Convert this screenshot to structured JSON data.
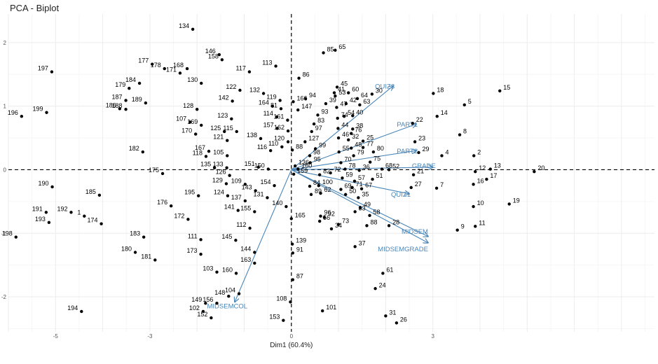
{
  "chart_data": {
    "type": "scatter",
    "subtype": "pca-biplot",
    "title": "PCA - Biplot",
    "xlabel": "Dim1 (60.4%)",
    "ylabel": "",
    "xlim": [
      -6.0,
      7.7
    ],
    "ylim": [
      -2.55,
      2.45
    ],
    "xticks": [
      -5,
      -3,
      0,
      3
    ],
    "yticks": [
      2,
      1,
      0,
      -1,
      -2
    ],
    "xtick_labels": [
      "-5",
      "-3",
      "0",
      "3"
    ],
    "ytick_labels": [
      "2",
      "1",
      "0",
      "-1",
      "-2"
    ],
    "grid": true,
    "points": [
      {
        "label": "134",
        "x": -2.09,
        "y": 2.21
      },
      {
        "label": "85",
        "x": 0.68,
        "y": 1.84
      },
      {
        "label": "65",
        "x": 0.93,
        "y": 1.88
      },
      {
        "label": "146",
        "x": -1.53,
        "y": 1.81
      },
      {
        "label": "158",
        "x": -1.47,
        "y": 1.73
      },
      {
        "label": "177",
        "x": -2.95,
        "y": 1.66
      },
      {
        "label": "178",
        "x": -2.69,
        "y": 1.59
      },
      {
        "label": "168",
        "x": -2.21,
        "y": 1.59
      },
      {
        "label": "171",
        "x": -2.36,
        "y": 1.52
      },
      {
        "label": "197",
        "x": -5.08,
        "y": 1.54
      },
      {
        "label": "113",
        "x": -0.33,
        "y": 1.63
      },
      {
        "label": "117",
        "x": -0.89,
        "y": 1.54
      },
      {
        "label": "86",
        "x": 0.16,
        "y": 1.44
      },
      {
        "label": "184",
        "x": -3.22,
        "y": 1.36
      },
      {
        "label": "179",
        "x": -3.44,
        "y": 1.28
      },
      {
        "label": "130",
        "x": -1.91,
        "y": 1.36
      },
      {
        "label": "122",
        "x": -1.09,
        "y": 1.25
      },
      {
        "label": "45",
        "x": 0.97,
        "y": 1.3
      },
      {
        "label": "41",
        "x": 0.91,
        "y": 1.21
      },
      {
        "label": "132",
        "x": -0.59,
        "y": 1.2
      },
      {
        "label": "60",
        "x": 1.21,
        "y": 1.21
      },
      {
        "label": "30",
        "x": 1.71,
        "y": 1.19
      },
      {
        "label": "53",
        "x": 0.93,
        "y": 1.16
      },
      {
        "label": "64",
        "x": 1.4,
        "y": 1.12
      },
      {
        "label": "94",
        "x": 0.3,
        "y": 1.12
      },
      {
        "label": "187",
        "x": -3.51,
        "y": 1.09
      },
      {
        "label": "39",
        "x": 0.73,
        "y": 1.04
      },
      {
        "label": "42",
        "x": 1.16,
        "y": 1.04
      },
      {
        "label": "119",
        "x": -0.24,
        "y": 1.09
      },
      {
        "label": "166",
        "x": 0.04,
        "y": 1.07
      },
      {
        "label": "63",
        "x": 1.45,
        "y": 1.02
      },
      {
        "label": "15",
        "x": 4.42,
        "y": 1.24
      },
      {
        "label": "18",
        "x": 3.01,
        "y": 1.2
      },
      {
        "label": "142",
        "x": -1.25,
        "y": 1.08
      },
      {
        "label": "47",
        "x": 0.96,
        "y": 0.98
      },
      {
        "label": "189",
        "x": -3.09,
        "y": 1.05
      },
      {
        "label": "164",
        "x": -0.4,
        "y": 1.0
      },
      {
        "label": "5",
        "x": 3.67,
        "y": 1.02
      },
      {
        "label": "186",
        "x": -3.64,
        "y": 0.96
      },
      {
        "label": "188",
        "x": -3.51,
        "y": 0.95
      },
      {
        "label": "128",
        "x": -2.0,
        "y": 0.95
      },
      {
        "label": "81",
        "x": -0.22,
        "y": 0.96
      },
      {
        "label": "147",
        "x": 0.14,
        "y": 0.94
      },
      {
        "label": "199",
        "x": -5.19,
        "y": 0.9
      },
      {
        "label": "40",
        "x": 1.3,
        "y": 0.85
      },
      {
        "label": "93",
        "x": 0.56,
        "y": 0.86
      },
      {
        "label": "74",
        "x": 0.98,
        "y": 0.81
      },
      {
        "label": "54",
        "x": 1.12,
        "y": 0.84
      },
      {
        "label": "196",
        "x": -5.72,
        "y": 0.84
      },
      {
        "label": "114",
        "x": -0.31,
        "y": 0.83
      },
      {
        "label": "161",
        "x": -0.08,
        "y": 0.78
      },
      {
        "label": "14",
        "x": 3.09,
        "y": 0.84
      },
      {
        "label": "123",
        "x": -1.27,
        "y": 0.8
      },
      {
        "label": "107",
        "x": -2.15,
        "y": 0.75
      },
      {
        "label": "169",
        "x": -1.91,
        "y": 0.7
      },
      {
        "label": "83",
        "x": 0.48,
        "y": 0.72
      },
      {
        "label": "22",
        "x": 2.57,
        "y": 0.73
      },
      {
        "label": "44",
        "x": 0.99,
        "y": 0.65
      },
      {
        "label": "38",
        "x": 1.3,
        "y": 0.64
      },
      {
        "label": "157",
        "x": -0.3,
        "y": 0.65
      },
      {
        "label": "162",
        "x": -0.07,
        "y": 0.61
      },
      {
        "label": "97",
        "x": 0.43,
        "y": 0.6
      },
      {
        "label": "76",
        "x": 1.27,
        "y": 0.57
      },
      {
        "label": "125",
        "x": -1.42,
        "y": 0.6
      },
      {
        "label": "115",
        "x": -1.16,
        "y": 0.6
      },
      {
        "label": "170",
        "x": -2.03,
        "y": 0.56
      },
      {
        "label": "46",
        "x": 1.0,
        "y": 0.5
      },
      {
        "label": "32",
        "x": 1.21,
        "y": 0.47
      },
      {
        "label": "25",
        "x": 1.52,
        "y": 0.45
      },
      {
        "label": "8",
        "x": 3.57,
        "y": 0.55
      },
      {
        "label": "138",
        "x": -0.65,
        "y": 0.49
      },
      {
        "label": "121",
        "x": -1.36,
        "y": 0.46
      },
      {
        "label": "120",
        "x": -0.07,
        "y": 0.44
      },
      {
        "label": "127",
        "x": 0.29,
        "y": 0.44
      },
      {
        "label": "23",
        "x": 2.62,
        "y": 0.44
      },
      {
        "label": "77",
        "x": 1.52,
        "y": 0.35
      },
      {
        "label": "48",
        "x": 1.27,
        "y": 0.34
      },
      {
        "label": "99",
        "x": 0.51,
        "y": 0.33
      },
      {
        "label": "110",
        "x": -0.2,
        "y": 0.36
      },
      {
        "label": "88",
        "x": 0.02,
        "y": 0.31
      },
      {
        "label": "29",
        "x": 2.7,
        "y": 0.27
      },
      {
        "label": "80",
        "x": 1.74,
        "y": 0.28
      },
      {
        "label": "182",
        "x": -3.15,
        "y": 0.28
      },
      {
        "label": "167",
        "x": -1.75,
        "y": 0.29
      },
      {
        "label": "116",
        "x": -0.44,
        "y": 0.3
      },
      {
        "label": "55",
        "x": 1.01,
        "y": 0.28
      },
      {
        "label": "79",
        "x": 1.32,
        "y": 0.22
      },
      {
        "label": "4",
        "x": 3.19,
        "y": 0.22
      },
      {
        "label": "2",
        "x": 3.87,
        "y": 0.22
      },
      {
        "label": "98",
        "x": 0.39,
        "y": 0.22
      },
      {
        "label": "105",
        "x": -1.36,
        "y": 0.22
      },
      {
        "label": "118",
        "x": -1.81,
        "y": 0.21
      },
      {
        "label": "95",
        "x": 0.4,
        "y": 0.11
      },
      {
        "label": "70",
        "x": 1.05,
        "y": 0.11
      },
      {
        "label": "75",
        "x": 1.67,
        "y": 0.12
      },
      {
        "label": "135",
        "x": -1.63,
        "y": 0.03
      },
      {
        "label": "133",
        "x": -1.37,
        "y": 0.03
      },
      {
        "label": "151",
        "x": -0.7,
        "y": 0.04
      },
      {
        "label": "150",
        "x": -0.49,
        "y": 0.01
      },
      {
        "label": "136",
        "x": 0.08,
        "y": 0.06
      },
      {
        "label": "160",
        "x": 0.14,
        "y": 0.01
      },
      {
        "label": "78",
        "x": 1.14,
        "y": 0.01
      },
      {
        "label": "36",
        "x": 1.44,
        "y": -0.01
      },
      {
        "label": "68",
        "x": 1.92,
        "y": 0.01
      },
      {
        "label": "52",
        "x": 2.07,
        "y": 0.0
      },
      {
        "label": "13",
        "x": 4.22,
        "y": 0.01
      },
      {
        "label": "12",
        "x": 3.9,
        "y": -0.03
      },
      {
        "label": "20",
        "x": 5.15,
        "y": -0.03
      },
      {
        "label": "175",
        "x": -2.73,
        "y": -0.06
      },
      {
        "label": "126",
        "x": -1.31,
        "y": -0.09
      },
      {
        "label": "159",
        "x": 0.05,
        "y": -0.07
      },
      {
        "label": "82",
        "x": 0.6,
        "y": -0.08
      },
      {
        "label": "72",
        "x": 0.83,
        "y": -0.05
      },
      {
        "label": "59",
        "x": 1.08,
        "y": -0.13
      },
      {
        "label": "21",
        "x": 2.59,
        "y": -0.08
      },
      {
        "label": "17",
        "x": 4.14,
        "y": -0.15
      },
      {
        "label": "57",
        "x": 1.34,
        "y": -0.18
      },
      {
        "label": "51",
        "x": 1.72,
        "y": -0.15
      },
      {
        "label": "190",
        "x": -5.07,
        "y": -0.27
      },
      {
        "label": "129",
        "x": -1.38,
        "y": -0.22
      },
      {
        "label": "109",
        "x": -0.98,
        "y": -0.23
      },
      {
        "label": "84",
        "x": 0.39,
        "y": -0.26
      },
      {
        "label": "100",
        "x": 0.58,
        "y": -0.25
      },
      {
        "label": "154",
        "x": -0.36,
        "y": -0.25
      },
      {
        "label": "7",
        "x": 3.08,
        "y": -0.29
      },
      {
        "label": "27",
        "x": 2.54,
        "y": -0.28
      },
      {
        "label": "16",
        "x": 3.86,
        "y": -0.23
      },
      {
        "label": "143",
        "x": -0.76,
        "y": -0.33
      },
      {
        "label": "69",
        "x": 1.05,
        "y": -0.31
      },
      {
        "label": "71",
        "x": 1.29,
        "y": -0.28
      },
      {
        "label": "67",
        "x": 1.49,
        "y": -0.3
      },
      {
        "label": "62",
        "x": 0.62,
        "y": -0.37
      },
      {
        "label": "89",
        "x": 0.42,
        "y": -0.39
      },
      {
        "label": "50",
        "x": 1.15,
        "y": -0.39
      },
      {
        "label": "124",
        "x": -1.35,
        "y": -0.41
      },
      {
        "label": "195",
        "x": -1.97,
        "y": -0.41
      },
      {
        "label": "185",
        "x": -4.07,
        "y": -0.4
      },
      {
        "label": "131",
        "x": -0.51,
        "y": -0.44
      },
      {
        "label": "35",
        "x": 1.42,
        "y": -0.44
      },
      {
        "label": "19",
        "x": 4.62,
        "y": -0.54
      },
      {
        "label": "137",
        "x": -0.98,
        "y": -0.49
      },
      {
        "label": "49",
        "x": 1.46,
        "y": -0.6
      },
      {
        "label": "176",
        "x": -2.55,
        "y": -0.57
      },
      {
        "label": "140",
        "x": -0.11,
        "y": -0.58
      },
      {
        "label": "10",
        "x": 3.86,
        "y": -0.58
      },
      {
        "label": "33",
        "x": 1.35,
        "y": -0.66
      },
      {
        "label": "155",
        "x": -0.78,
        "y": -0.66
      },
      {
        "label": "141",
        "x": -1.13,
        "y": -0.64
      },
      {
        "label": "191",
        "x": -5.2,
        "y": -0.67
      },
      {
        "label": "192",
        "x": -4.67,
        "y": -0.67
      },
      {
        "label": "1",
        "x": -4.39,
        "y": -0.73
      },
      {
        "label": "58",
        "x": 1.66,
        "y": -0.72
      },
      {
        "label": "96",
        "x": 0.62,
        "y": -0.73
      },
      {
        "label": "92",
        "x": 0.7,
        "y": -0.75
      },
      {
        "label": "165",
        "x": 0.0,
        "y": -0.77
      },
      {
        "label": "172",
        "x": -2.19,
        "y": -0.78
      },
      {
        "label": "193",
        "x": -5.14,
        "y": -0.83
      },
      {
        "label": "174",
        "x": -4.03,
        "y": -0.85
      },
      {
        "label": "56",
        "x": 0.6,
        "y": -0.81
      },
      {
        "label": "73",
        "x": 1.0,
        "y": -0.86
      },
      {
        "label": "88b",
        "x": 1.6,
        "y": -0.88
      },
      {
        "label": "28",
        "x": 2.07,
        "y": -0.88
      },
      {
        "label": "11",
        "x": 3.9,
        "y": -0.89
      },
      {
        "label": "112",
        "x": -0.88,
        "y": -0.92
      },
      {
        "label": "34",
        "x": 0.85,
        "y": -0.93
      },
      {
        "label": "9",
        "x": 3.52,
        "y": -0.95
      },
      {
        "label": "198",
        "x": -5.84,
        "y": -1.06
      },
      {
        "label": "183",
        "x": -3.13,
        "y": -1.06
      },
      {
        "label": "145",
        "x": -1.18,
        "y": -1.11
      },
      {
        "label": "111",
        "x": -1.92,
        "y": -1.1
      },
      {
        "label": "139",
        "x": 0.02,
        "y": -1.17
      },
      {
        "label": "37",
        "x": 1.35,
        "y": -1.21
      },
      {
        "label": "180",
        "x": -3.31,
        "y": -1.3
      },
      {
        "label": "144",
        "x": -0.78,
        "y": -1.3
      },
      {
        "label": "91",
        "x": 0.03,
        "y": -1.31
      },
      {
        "label": "173",
        "x": -1.92,
        "y": -1.33
      },
      {
        "label": "181",
        "x": -2.89,
        "y": -1.42
      },
      {
        "label": "163",
        "x": -0.78,
        "y": -1.47
      },
      {
        "label": "103",
        "x": -1.58,
        "y": -1.61
      },
      {
        "label": "160b",
        "x": -1.17,
        "y": -1.63
      },
      {
        "label": "61",
        "x": 1.94,
        "y": -1.63
      },
      {
        "label": "87",
        "x": 0.03,
        "y": -1.73
      },
      {
        "label": "24",
        "x": 1.78,
        "y": -1.87
      },
      {
        "label": "104",
        "x": -1.11,
        "y": -1.95
      },
      {
        "label": "148",
        "x": -1.33,
        "y": -1.99
      },
      {
        "label": "149",
        "x": -1.82,
        "y": -2.1
      },
      {
        "label": "156",
        "x": -1.58,
        "y": -2.1
      },
      {
        "label": "108",
        "x": -0.02,
        "y": -2.08
      },
      {
        "label": "194",
        "x": -4.45,
        "y": -2.23
      },
      {
        "label": "102",
        "x": -1.87,
        "y": -2.23
      },
      {
        "label": "101",
        "x": 0.66,
        "y": -2.22
      },
      {
        "label": "31",
        "x": 2.0,
        "y": -2.3
      },
      {
        "label": "152",
        "x": -1.7,
        "y": -2.33
      },
      {
        "label": "153",
        "x": -0.17,
        "y": -2.37
      },
      {
        "label": "26",
        "x": 2.23,
        "y": -2.41
      }
    ],
    "variables": [
      {
        "name": "QUIZ3",
        "x": 2.16,
        "y": 1.32
      },
      {
        "name": "PART1",
        "x": 2.65,
        "y": 0.72
      },
      {
        "name": "PART2",
        "x": 2.65,
        "y": 0.3
      },
      {
        "name": "GRADE",
        "x": 3.0,
        "y": 0.04
      },
      {
        "name": "QUIZ1",
        "x": 2.5,
        "y": -0.38
      },
      {
        "name": "MIDSEM",
        "x": 2.9,
        "y": -1.05
      },
      {
        "name": "MIDSEMGRADE",
        "x": 2.9,
        "y": -1.15
      },
      {
        "name": "MIDSEMCOL",
        "x": -1.2,
        "y": -2.08
      }
    ]
  }
}
